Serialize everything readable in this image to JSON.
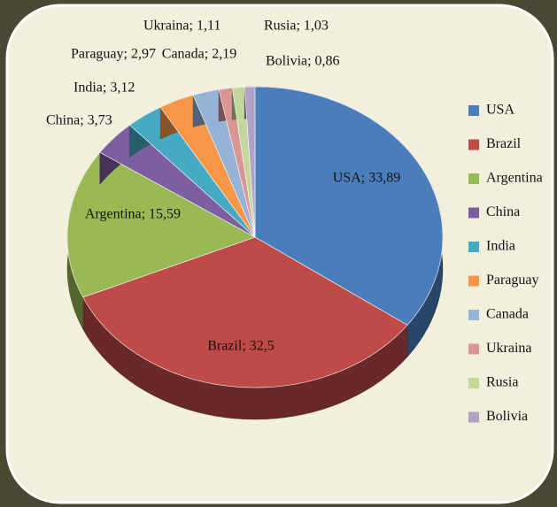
{
  "chart_data": {
    "type": "pie",
    "categories": [
      "USA",
      "Brazil",
      "Argentina",
      "China",
      "India",
      "Paraguay",
      "Canada",
      "Ukraina",
      "Rusia",
      "Bolivia"
    ],
    "values": [
      33.89,
      32.5,
      15.59,
      3.73,
      3.12,
      2.97,
      2.19,
      1.11,
      1.03,
      0.86
    ],
    "value_labels": [
      "USA; 33,89",
      "Brazil; 32,5",
      "Argentina; 15,59",
      "China; 3,73",
      "India; 3,12",
      "Paraguay; 2,97",
      "Canada; 2,19",
      "Ukraina; 1,11",
      "Rusia; 1,03",
      "Bolivia; 0,86"
    ],
    "colors": [
      "#4a7ebb",
      "#be4b48",
      "#98b954",
      "#7d5fa0",
      "#46aac5",
      "#f79646",
      "#94b3d6",
      "#d99694",
      "#c3d69b",
      "#b2a1c7"
    ],
    "legend": "right"
  }
}
